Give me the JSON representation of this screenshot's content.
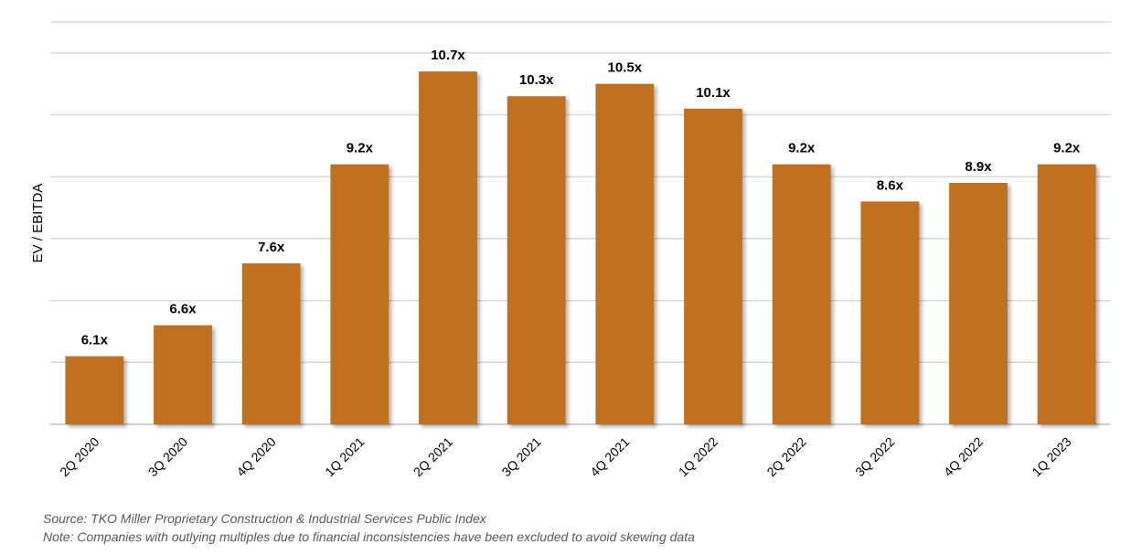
{
  "chart_data": {
    "type": "bar",
    "categories": [
      "2Q 2020",
      "3Q 2020",
      "4Q 2020",
      "1Q 2021",
      "2Q 2021",
      "3Q 2021",
      "4Q 2021",
      "1Q 2022",
      "2Q 2022",
      "3Q 2022",
      "4Q 2022",
      "1Q 2023"
    ],
    "values": [
      6.1,
      6.6,
      7.6,
      9.2,
      10.7,
      10.3,
      10.5,
      10.1,
      9.2,
      8.6,
      8.9,
      9.2
    ],
    "data_labels": [
      "6.1x",
      "6.6x",
      "7.6x",
      "9.2x",
      "10.7x",
      "10.3x",
      "10.5x",
      "10.1x",
      "9.2x",
      "8.6x",
      "8.9x",
      "9.2x"
    ],
    "title": "",
    "xlabel": "",
    "ylabel": "EV / EBITDA",
    "ylim": [
      5.0,
      11.5
    ],
    "y_gridlines": [
      6.0,
      7.0,
      8.0,
      9.0,
      10.0,
      11.0
    ],
    "y_tick_labels_shown": false,
    "grid": true,
    "legend": "none",
    "bar_color": "#c0701f",
    "grid_color": "#d9d9d9"
  },
  "footnotes": {
    "source": "Source: TKO Miller Proprietary Construction & Industrial Services Public Index",
    "note": "Note: Companies with outlying multiples due to financial inconsistencies have been excluded to avoid skewing data"
  }
}
